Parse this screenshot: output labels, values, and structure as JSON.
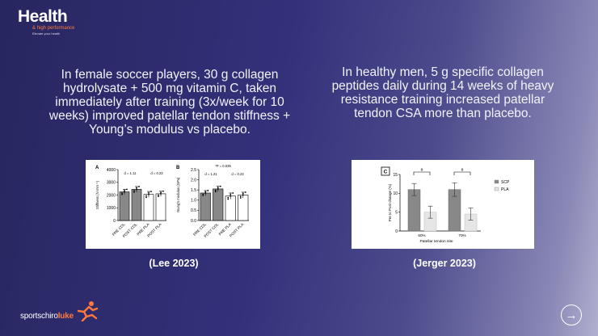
{
  "logo": {
    "main": "Health",
    "sub": "& high performance",
    "tiny": "Elevate your health"
  },
  "captions": {
    "left": "In female soccer players, 30 g collagen hydrolysate + 500 mg vitamin C, taken immediately after training (3x/week for 10 weeks) improved patellar tendon stiffness + Young’s modulus vs placebo.",
    "right": "In healthy men, 5 g specific collagen peptides daily during 14 weeks of heavy resistance training increased patellar tendon CSA more than placebo."
  },
  "citations": {
    "left": "(Lee 2023)",
    "right": "(Jerger 2023)"
  },
  "brand": {
    "part1": "sportschiro",
    "part2": "luke"
  },
  "next_icon": "arrow-right-circle-icon",
  "colors": {
    "accent": "#ff7a3d",
    "bar_dark": "#888888",
    "bar_light": "#e6e6e6"
  },
  "chart_data": [
    {
      "type": "bar",
      "panel": "A",
      "categories": [
        "PRE COL",
        "POST COL",
        "PRE PLA",
        "POST PLA"
      ],
      "values": [
        2250,
        2450,
        2050,
        2100
      ],
      "errors": [
        200,
        220,
        230,
        200
      ],
      "ylabel": "Stiffness (N·mm⁻¹)",
      "ylim": [
        0,
        4000
      ],
      "yticks": [
        "0",
        "1000",
        "2000",
        "3000",
        "4000"
      ],
      "annotations": [
        "d = 1.11",
        "d = 0.23"
      ]
    },
    {
      "type": "bar",
      "panel": "B",
      "categories": [
        "PRE COL",
        "POST COL",
        "PRE PLA",
        "POST PLA"
      ],
      "values": [
        1.35,
        1.55,
        1.2,
        1.25
      ],
      "errors": [
        0.12,
        0.13,
        0.15,
        0.14
      ],
      "ylabel": "Young's modulus (GPa)",
      "ylim": [
        0,
        2.5
      ],
      "yticks": [
        "0.0",
        "0.5",
        "1.0",
        "1.5",
        "2.0",
        "2.5"
      ],
      "annotations": [
        "*P = 0.035",
        "d = 1.21",
        "d = 0.23"
      ]
    },
    {
      "type": "bar",
      "panel": "C",
      "categories": [
        "60%",
        "70%"
      ],
      "series": [
        {
          "name": "SCP",
          "values": [
            11,
            11
          ],
          "errors": [
            1.6,
            1.8
          ]
        },
        {
          "name": "PLA",
          "values": [
            5,
            4.5
          ],
          "errors": [
            1.6,
            1.6
          ]
        }
      ],
      "xlabel": "Patellar tendon site",
      "ylabel": "Pre to Post change (%)",
      "ylim": [
        0,
        15
      ],
      "yticks": [
        "0",
        "5",
        "10",
        "15"
      ],
      "annotations": [
        "#",
        "#"
      ]
    }
  ]
}
